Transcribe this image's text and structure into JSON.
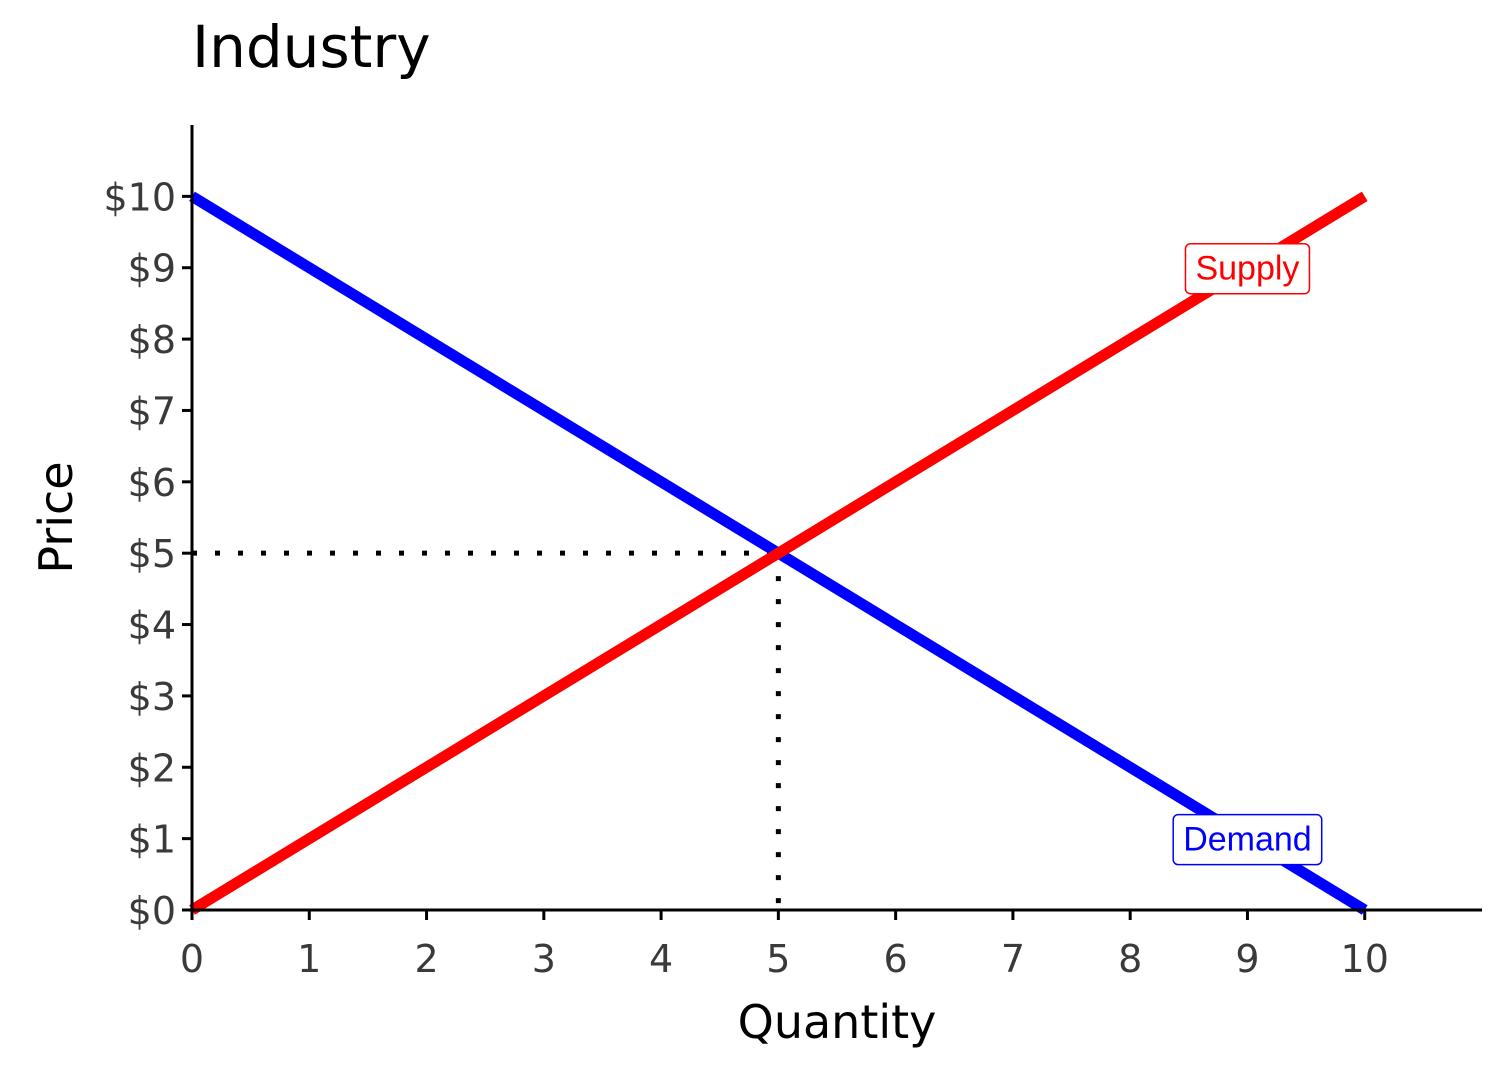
{
  "chart_data": {
    "type": "line",
    "title": "Industry",
    "xlabel": "Quantity",
    "ylabel": "Price",
    "xlim": [
      0,
      11
    ],
    "ylim": [
      0,
      11
    ],
    "x_ticks": [
      0,
      1,
      2,
      3,
      4,
      5,
      6,
      7,
      8,
      9,
      10
    ],
    "x_tick_labels": [
      "0",
      "1",
      "2",
      "3",
      "4",
      "5",
      "6",
      "7",
      "8",
      "9",
      "10"
    ],
    "y_ticks": [
      0,
      1,
      2,
      3,
      4,
      5,
      6,
      7,
      8,
      9,
      10
    ],
    "y_tick_labels": [
      "$0",
      "$1",
      "$2",
      "$3",
      "$4",
      "$5",
      "$6",
      "$7",
      "$8",
      "$9",
      "$10"
    ],
    "grid": false,
    "series": [
      {
        "name": "Demand",
        "color": "#0000ff",
        "x": [
          0,
          10
        ],
        "y": [
          10,
          0
        ]
      },
      {
        "name": "Supply",
        "color": "#ff0000",
        "x": [
          0,
          10
        ],
        "y": [
          0,
          10
        ]
      }
    ],
    "annotations": [
      {
        "text": "Supply",
        "x": 9,
        "y": 9,
        "color": "#ff0000",
        "style": "label-box"
      },
      {
        "text": "Demand",
        "x": 9,
        "y": 1,
        "color": "#0000ff",
        "style": "label-box"
      }
    ],
    "equilibrium": {
      "x": 5,
      "y": 5,
      "guide_lines": "dotted"
    }
  }
}
